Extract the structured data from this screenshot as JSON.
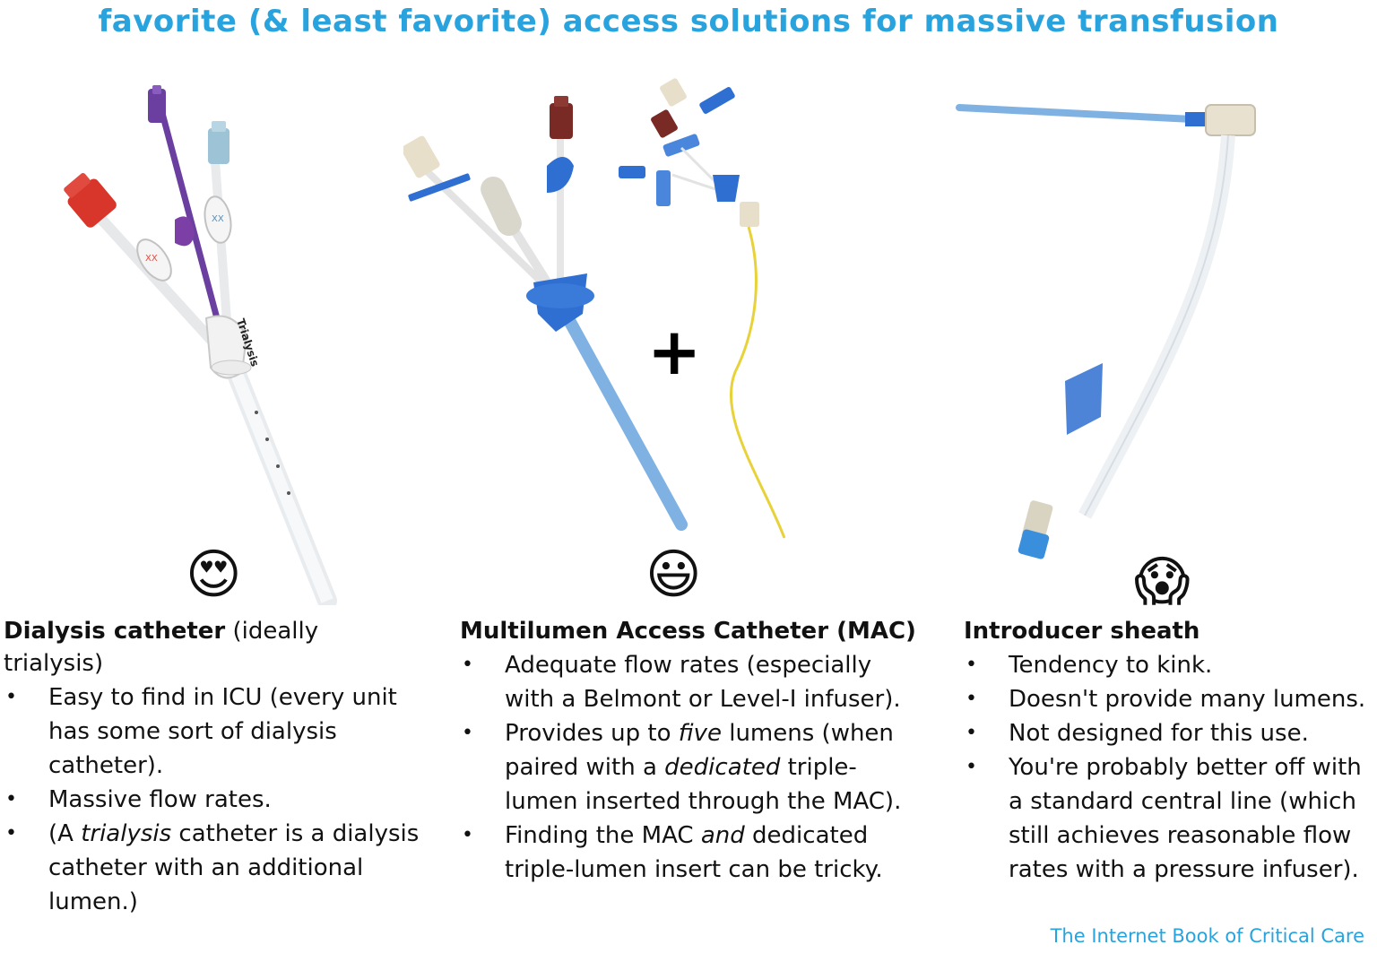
{
  "title": "favorite (& least favorite) access solutions for massive transfusion",
  "plus_sign": "+",
  "columns": [
    {
      "emoji": "😍",
      "heading_bold": "Dialysis catheter",
      "heading_rest": " (ideally trialysis)",
      "bullets": [
        [
          "Easy to find in ICU (every unit has some sort of dialysis catheter)."
        ],
        [
          "Massive flow rates."
        ],
        [
          "(A ",
          {
            "i": "trialysis"
          },
          " catheter is a dialysis catheter with an additional lumen.)"
        ]
      ],
      "device_labels": [
        "Trialysis",
        "XX",
        "XX"
      ]
    },
    {
      "emoji": "😃",
      "heading_bold": "Multilumen Access Catheter (MAC)",
      "heading_rest": "",
      "bullets": [
        [
          "Adequate flow rates (especially with a Belmont or Level-I infuser)."
        ],
        [
          "Provides up to ",
          {
            "i": "five"
          },
          " lumens (when paired with a ",
          {
            "i": "dedicated"
          },
          " triple-lumen inserted through the MAC)."
        ],
        [
          "Finding the MAC ",
          {
            "i": "and"
          },
          " dedicated triple-lumen insert can be tricky."
        ]
      ]
    },
    {
      "emoji": "😱",
      "heading_bold": "Introducer sheath",
      "heading_rest": "",
      "bullets": [
        [
          "Tendency to kink."
        ],
        [
          "Doesn't provide many lumens."
        ],
        [
          "Not designed for this use."
        ],
        [
          "You're probably better off with a standard central line (which still achieves reasonable flow rates with a pressure infuser)."
        ]
      ]
    }
  ],
  "bullet_char": "•",
  "footer": "The Internet Book of Critical Care",
  "colors": {
    "title": "#29a3de",
    "footer": "#29a3de",
    "red_hub": "#d9362b",
    "purple_hub": "#6b3fa0",
    "light_blue_hub": "#9cc3d6",
    "mac_blue": "#2e6fd1",
    "maroon_hub": "#7a2a24",
    "yellow_wire": "#e8d23a"
  }
}
